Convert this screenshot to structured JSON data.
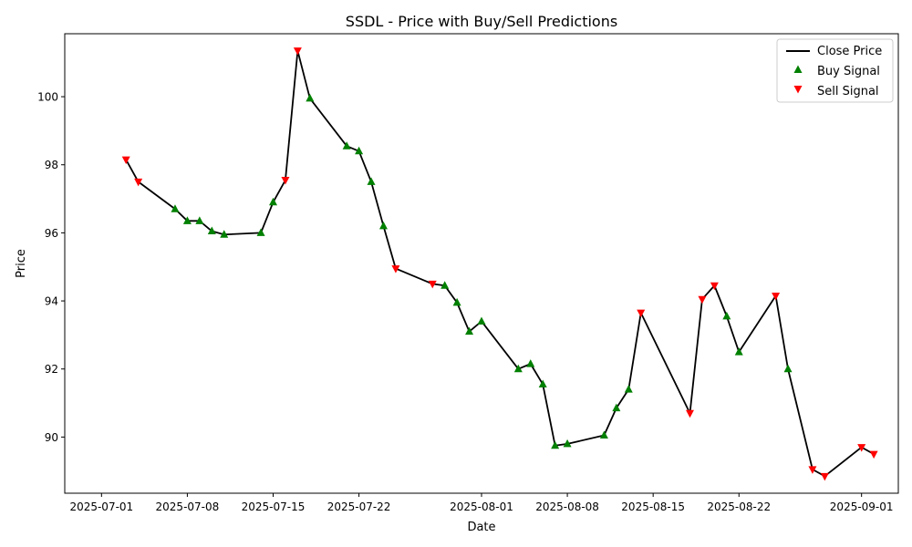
{
  "chart_data": {
    "type": "line",
    "title": "SSDL - Price with Buy/Sell Predictions",
    "xlabel": "Date",
    "ylabel": "Price",
    "x_ticks": [
      "2025-07-01",
      "2025-07-08",
      "2025-07-15",
      "2025-07-22",
      "2025-08-01",
      "2025-08-08",
      "2025-08-15",
      "2025-08-22",
      "2025-09-01"
    ],
    "y_ticks": [
      90,
      92,
      94,
      96,
      98,
      100
    ],
    "xlim": [
      "2025-06-28",
      "2025-09-04"
    ],
    "ylim": [
      88.35,
      101.85
    ],
    "grid": false,
    "legend_position": "top-right",
    "colors": {
      "close_price": "#000000",
      "buy_signal": "#008000",
      "sell_signal": "#ff0000"
    },
    "series": [
      {
        "name": "Close Price",
        "kind": "line",
        "x": [
          "2025-07-03",
          "2025-07-04",
          "2025-07-07",
          "2025-07-08",
          "2025-07-09",
          "2025-07-10",
          "2025-07-11",
          "2025-07-14",
          "2025-07-15",
          "2025-07-16",
          "2025-07-17",
          "2025-07-18",
          "2025-07-21",
          "2025-07-22",
          "2025-07-23",
          "2025-07-24",
          "2025-07-25",
          "2025-07-28",
          "2025-07-29",
          "2025-07-30",
          "2025-07-31",
          "2025-08-01",
          "2025-08-04",
          "2025-08-05",
          "2025-08-06",
          "2025-08-07",
          "2025-08-08",
          "2025-08-11",
          "2025-08-12",
          "2025-08-13",
          "2025-08-14",
          "2025-08-18",
          "2025-08-19",
          "2025-08-20",
          "2025-08-21",
          "2025-08-22",
          "2025-08-25",
          "2025-08-26",
          "2025-08-28",
          "2025-08-29",
          "2025-09-01",
          "2025-09-02"
        ],
        "y": [
          98.15,
          97.5,
          96.7,
          96.35,
          96.35,
          96.05,
          95.95,
          96.0,
          96.9,
          97.55,
          101.35,
          99.95,
          98.55,
          98.4,
          97.5,
          96.2,
          94.95,
          94.5,
          94.45,
          93.95,
          93.1,
          93.4,
          92.0,
          92.15,
          91.55,
          89.75,
          89.8,
          90.05,
          90.85,
          91.4,
          93.65,
          90.7,
          94.05,
          94.45,
          93.55,
          92.5,
          94.15,
          92.0,
          89.05,
          88.85,
          89.7,
          89.5
        ]
      },
      {
        "name": "Buy Signal",
        "kind": "scatter",
        "marker": "triangle-up",
        "x": [
          "2025-07-07",
          "2025-07-08",
          "2025-07-09",
          "2025-07-10",
          "2025-07-11",
          "2025-07-14",
          "2025-07-15",
          "2025-07-18",
          "2025-07-21",
          "2025-07-22",
          "2025-07-23",
          "2025-07-24",
          "2025-07-29",
          "2025-07-30",
          "2025-07-31",
          "2025-08-01",
          "2025-08-04",
          "2025-08-05",
          "2025-08-06",
          "2025-08-07",
          "2025-08-08",
          "2025-08-11",
          "2025-08-12",
          "2025-08-13",
          "2025-08-21",
          "2025-08-22",
          "2025-08-26"
        ],
        "y": [
          96.7,
          96.35,
          96.35,
          96.05,
          95.95,
          96.0,
          96.9,
          99.95,
          98.55,
          98.4,
          97.5,
          96.2,
          94.45,
          93.95,
          93.1,
          93.4,
          92.0,
          92.15,
          91.55,
          89.75,
          89.8,
          90.05,
          90.85,
          91.4,
          93.55,
          92.5,
          92.0
        ]
      },
      {
        "name": "Sell Signal",
        "kind": "scatter",
        "marker": "triangle-down",
        "x": [
          "2025-07-03",
          "2025-07-04",
          "2025-07-16",
          "2025-07-17",
          "2025-07-25",
          "2025-07-28",
          "2025-08-14",
          "2025-08-18",
          "2025-08-19",
          "2025-08-20",
          "2025-08-25",
          "2025-08-28",
          "2025-08-29",
          "2025-09-01",
          "2025-09-02"
        ],
        "y": [
          98.15,
          97.5,
          97.55,
          101.35,
          94.95,
          94.5,
          93.65,
          90.7,
          94.05,
          94.45,
          94.15,
          89.05,
          88.85,
          89.7,
          89.5
        ]
      }
    ]
  }
}
